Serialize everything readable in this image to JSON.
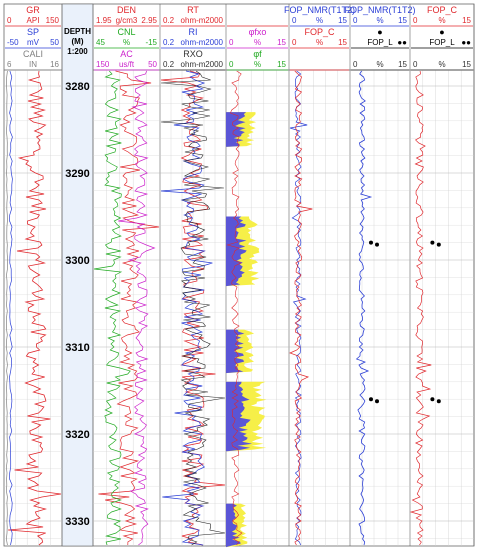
{
  "depth": {
    "title": "DEPTH",
    "unit": "(M)",
    "scale": "1:200",
    "ticks": [
      "3280",
      "3290",
      "3300",
      "3310",
      "3320",
      "3330"
    ]
  },
  "tracks": [
    {
      "id": "t1",
      "headers": [
        {
          "name": "GR",
          "min": "0",
          "unit": "API",
          "max": "150",
          "color": "#e0282d"
        },
        {
          "name": "SP",
          "min": "-50",
          "unit": "mV",
          "max": "50",
          "color": "#2b3fd6"
        },
        {
          "name": "CALI",
          "min": "6",
          "unit": "IN",
          "max": "16",
          "color": "#808080"
        }
      ]
    },
    {
      "id": "t3",
      "headers": [
        {
          "name": "DEN",
          "min": "1.95",
          "unit": "g/cm3",
          "max": "2.95",
          "color": "#e0282d"
        },
        {
          "name": "CNL",
          "min": "45",
          "unit": "%",
          "max": "-15",
          "color": "#22aa22"
        },
        {
          "name": "AC",
          "min": "150",
          "unit": "us/ft",
          "max": "50",
          "color": "#cc22cc"
        }
      ]
    },
    {
      "id": "t4",
      "headers": [
        {
          "name": "RT",
          "min": "0.2",
          "unit": "ohm-m",
          "max": "2000",
          "color": "#e0282d"
        },
        {
          "name": "RI",
          "min": "0.2",
          "unit": "ohm-m",
          "max": "2000",
          "color": "#2b3fd6"
        },
        {
          "name": "RXO",
          "min": "0.2",
          "unit": "ohm-m",
          "max": "2000",
          "color": "#333333"
        }
      ]
    },
    {
      "id": "t5",
      "headers": [
        {
          "name": "",
          "min": "",
          "unit": "",
          "max": "",
          "color": "#e0282d"
        },
        {
          "name": "φfxo",
          "min": "0",
          "unit": "%",
          "max": "15",
          "color": "#cc22cc"
        },
        {
          "name": "φf",
          "min": "0",
          "unit": "%",
          "max": "15",
          "color": "#22aa22"
        }
      ]
    },
    {
      "id": "t6",
      "headers": [
        {
          "name": "FOP_NMR(T1T2)",
          "min": "0",
          "unit": "%",
          "max": "15",
          "color": "#2b3fd6"
        },
        {
          "name": "FOP_C",
          "min": "0",
          "unit": "%",
          "max": "15",
          "color": "#e0282d"
        },
        {
          "name": "",
          "min": "",
          "unit": "",
          "max": "",
          "color": "#e0282d"
        }
      ]
    },
    {
      "id": "t7",
      "headers": [
        {
          "name": "FOP_NMR(T1T2)",
          "min": "0",
          "unit": "%",
          "max": "15",
          "color": "#2b3fd6"
        },
        {
          "name": "●",
          "min": "",
          "unit": "FOP_L",
          "max": "●●",
          "color": "#000000"
        },
        {
          "name": "",
          "min": "0",
          "unit": "%",
          "max": "15",
          "color": "#333333"
        }
      ]
    },
    {
      "id": "t8",
      "headers": [
        {
          "name": "FOP_C",
          "min": "0",
          "unit": "%",
          "max": "15",
          "color": "#e0282d"
        },
        {
          "name": "●",
          "min": "",
          "unit": "FOP_L",
          "max": "●●",
          "color": "#000000"
        },
        {
          "name": "",
          "min": "0",
          "unit": "%",
          "max": "15",
          "color": "#333333"
        }
      ]
    }
  ],
  "colors": {
    "porosity_fill": "#f6ef48",
    "porosity_fill2": "#5a55d6",
    "grid": "#cfcfcf",
    "red": "#e0282d",
    "blue": "#2b3fd6",
    "green": "#22aa22",
    "magenta": "#cc22cc",
    "gray": "#808080",
    "black": "#222222"
  }
}
